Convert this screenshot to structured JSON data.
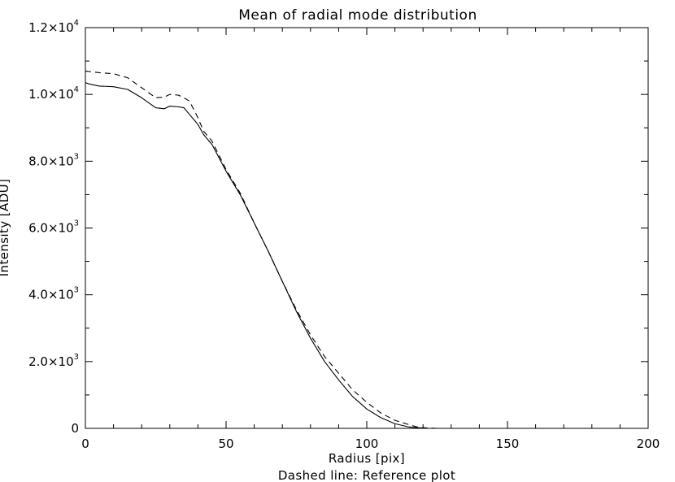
{
  "chart_data": {
    "type": "line",
    "title": "Mean of radial mode distribution",
    "xlabel": "Radius [pix]",
    "ylabel": "Intensity [ADU]",
    "subtitle": "Dashed line: Reference plot",
    "xlim": [
      0,
      200
    ],
    "ylim": [
      0,
      12000
    ],
    "x_ticks": [
      {
        "value": 0,
        "label": "0"
      },
      {
        "value": 50,
        "label": "50"
      },
      {
        "value": 100,
        "label": "100"
      },
      {
        "value": 150,
        "label": "150"
      },
      {
        "value": 200,
        "label": "200"
      }
    ],
    "y_ticks": [
      {
        "value": 0,
        "mantissa": "0",
        "exp": ""
      },
      {
        "value": 2000,
        "mantissa": "2.0×10",
        "exp": "3"
      },
      {
        "value": 4000,
        "mantissa": "4.0×10",
        "exp": "3"
      },
      {
        "value": 6000,
        "mantissa": "6.0×10",
        "exp": "3"
      },
      {
        "value": 8000,
        "mantissa": "8.0×10",
        "exp": "3"
      },
      {
        "value": 10000,
        "mantissa": "1.0×10",
        "exp": "4"
      },
      {
        "value": 12000,
        "mantissa": "1.2×10",
        "exp": "4"
      }
    ],
    "x_minor_step": 10,
    "y_minor_step": 1000,
    "grid": false,
    "legend": "none",
    "series": [
      {
        "style": "solid",
        "color": "#000000",
        "x": [
          0,
          2,
          5,
          10,
          15,
          20,
          25,
          28,
          30,
          33,
          35,
          37,
          40,
          42,
          45,
          50,
          55,
          60,
          65,
          70,
          75,
          80,
          85,
          90,
          95,
          100,
          105,
          110,
          115,
          118,
          120,
          122,
          125,
          130,
          140,
          150,
          160,
          170,
          180,
          185
        ],
        "y": [
          10350,
          10300,
          10250,
          10230,
          10150,
          9900,
          9600,
          9570,
          9650,
          9630,
          9600,
          9400,
          9100,
          8800,
          8500,
          7700,
          7000,
          6150,
          5300,
          4400,
          3500,
          2700,
          2000,
          1450,
          950,
          580,
          320,
          140,
          40,
          20,
          10,
          0,
          0,
          0,
          0,
          0,
          0,
          0,
          0,
          0
        ]
      },
      {
        "style": "dashed",
        "color": "#000000",
        "x": [
          0,
          5,
          10,
          15,
          20,
          25,
          28,
          30,
          33,
          35,
          37,
          40,
          42,
          45,
          50,
          55,
          60,
          65,
          70,
          75,
          80,
          85,
          90,
          95,
          100,
          105,
          110,
          115,
          118,
          120,
          122,
          125,
          130,
          140,
          150,
          160,
          170,
          180,
          185
        ],
        "y": [
          10700,
          10650,
          10620,
          10500,
          10200,
          9900,
          9920,
          10000,
          9980,
          9900,
          9800,
          9300,
          8900,
          8600,
          7750,
          7050,
          6150,
          5300,
          4400,
          3550,
          2800,
          2150,
          1650,
          1150,
          780,
          460,
          240,
          110,
          40,
          20,
          10,
          0,
          0,
          0,
          0,
          0,
          0,
          0,
          0
        ]
      }
    ]
  }
}
